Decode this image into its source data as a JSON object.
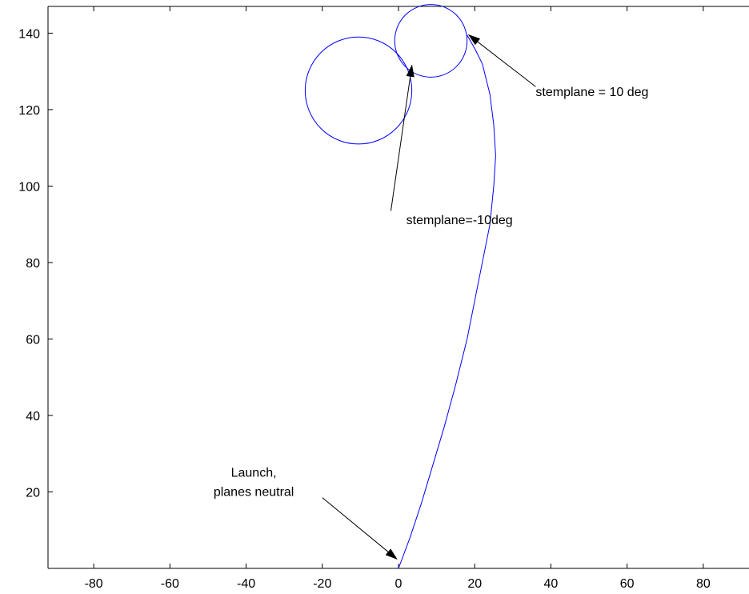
{
  "chart_data": {
    "type": "line",
    "title": "",
    "xlabel": "",
    "ylabel": "",
    "xlim": [
      -92,
      92
    ],
    "ylim": [
      0,
      147
    ],
    "grid": false,
    "xticks": [
      -80,
      -60,
      -40,
      -20,
      0,
      20,
      40,
      60,
      80
    ],
    "yticks": [
      20,
      40,
      60,
      80,
      100,
      120,
      140
    ],
    "line_color": "#0000ff",
    "path": {
      "x": [
        0,
        3,
        6,
        9,
        12,
        15,
        18,
        20,
        22,
        24,
        25,
        25.5,
        25,
        24,
        22,
        20,
        18
      ],
      "y": [
        0,
        8,
        17,
        27,
        37,
        48,
        60,
        70,
        80,
        90,
        100,
        108,
        116,
        124,
        132,
        136,
        139.5
      ]
    },
    "circles": [
      {
        "cx": 8.5,
        "cy": 138,
        "r": 9.5
      },
      {
        "cx": -10.5,
        "cy": 125,
        "r": 14
      }
    ],
    "annotations": [
      {
        "text": "stemplane = 10 deg",
        "text_x": 36,
        "text_y": 123.5,
        "anchor": "start",
        "arrow_from": [
          36,
          126
        ],
        "arrow_to": [
          18.5,
          139.5
        ]
      },
      {
        "text": "stemplane=-10deg",
        "text_x": 16,
        "text_y": 90,
        "anchor": "middle",
        "arrow_from": [
          -2,
          93.5
        ],
        "arrow_to": [
          3.5,
          131.5
        ]
      },
      {
        "text": "Launch,",
        "text_x": -38,
        "text_y": 24,
        "anchor": "middle",
        "arrow_from": null,
        "arrow_to": null
      },
      {
        "text": "planes neutral",
        "text_x": -38,
        "text_y": 19,
        "anchor": "middle",
        "arrow_from": [
          -20,
          18.5
        ],
        "arrow_to": [
          -0.5,
          2.5
        ]
      }
    ]
  }
}
